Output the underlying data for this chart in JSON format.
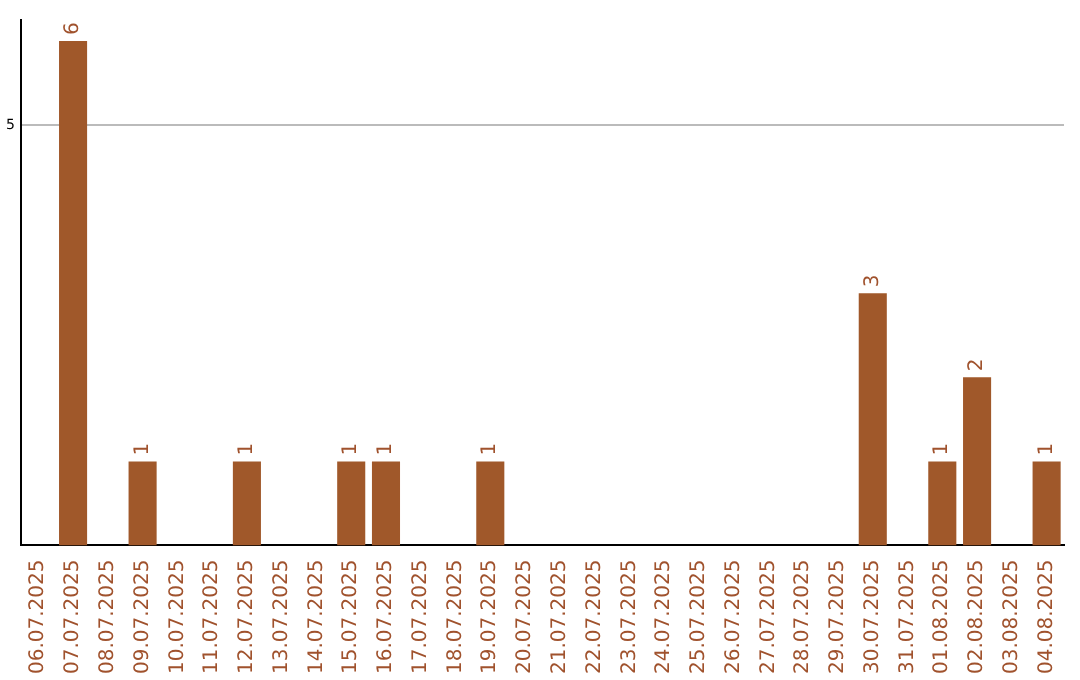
{
  "chart_data": {
    "type": "bar",
    "categories": [
      "06.07.2025",
      "07.07.2025",
      "08.07.2025",
      "09.07.2025",
      "10.07.2025",
      "11.07.2025",
      "12.07.2025",
      "13.07.2025",
      "14.07.2025",
      "15.07.2025",
      "16.07.2025",
      "17.07.2025",
      "18.07.2025",
      "19.07.2025",
      "20.07.2025",
      "21.07.2025",
      "22.07.2025",
      "23.07.2025",
      "24.07.2025",
      "25.07.2025",
      "26.07.2025",
      "27.07.2025",
      "28.07.2025",
      "29.07.2025",
      "30.07.2025",
      "31.07.2025",
      "01.08.2025",
      "02.08.2025",
      "03.08.2025",
      "04.08.2025"
    ],
    "values": [
      0,
      6,
      0,
      1,
      0,
      0,
      1,
      0,
      0,
      1,
      1,
      0,
      0,
      1,
      0,
      0,
      0,
      0,
      0,
      0,
      0,
      0,
      0,
      0,
      3,
      0,
      1,
      2,
      0,
      1
    ],
    "value_labels": [
      null,
      "6",
      null,
      "1",
      null,
      null,
      "1",
      null,
      null,
      "1",
      "1",
      null,
      null,
      "1",
      null,
      null,
      null,
      null,
      null,
      null,
      null,
      null,
      null,
      null,
      "3",
      null,
      "1",
      "2",
      null,
      "1"
    ],
    "color": "#a0582a",
    "ylim": [
      0,
      6.25
    ],
    "yticks": [
      5
    ],
    "grid": "y",
    "legend": false
  }
}
